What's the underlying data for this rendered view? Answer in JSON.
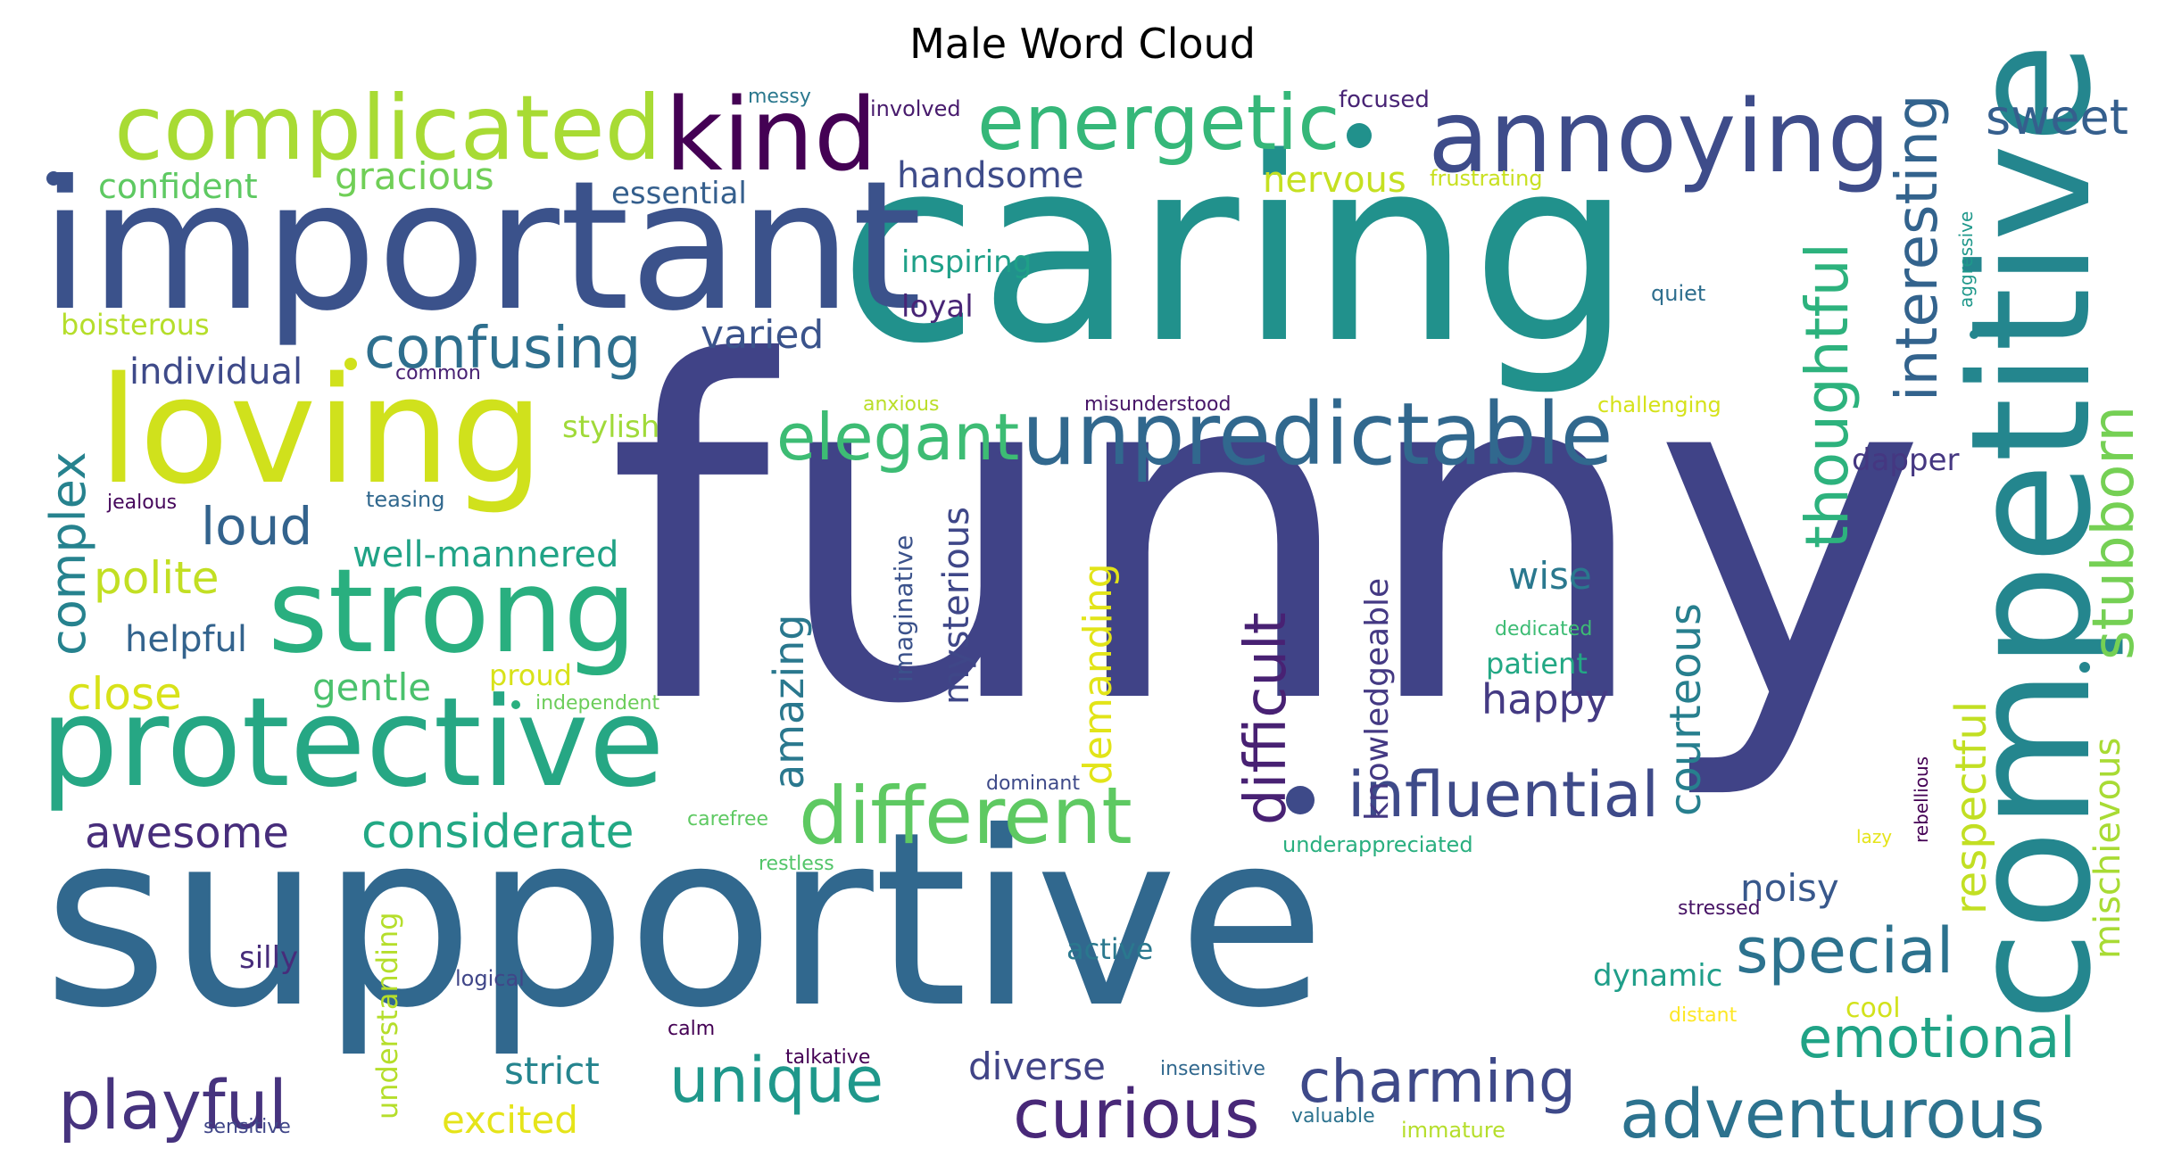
{
  "title": "Male Word Cloud",
  "words": [
    {
      "text": "funny",
      "color": "#404387"
    },
    {
      "text": "supportive",
      "color": "#31688e"
    },
    {
      "text": "caring",
      "color": "#21918c"
    },
    {
      "text": "important",
      "color": "#3b528b"
    },
    {
      "text": "competitive",
      "color": "#24868e"
    },
    {
      "text": "loving",
      "color": "#d0e11c"
    },
    {
      "text": "protective",
      "color": "#26a784"
    },
    {
      "text": "strong",
      "color": "#29af7f"
    },
    {
      "text": "complicated",
      "color": "#a8db34"
    },
    {
      "text": "annoying",
      "color": "#3e4c8a"
    },
    {
      "text": "kind",
      "color": "#440154"
    },
    {
      "text": "energetic",
      "color": "#35b779"
    },
    {
      "text": "unpredictable",
      "color": "#31688e"
    },
    {
      "text": "different",
      "color": "#5ec962"
    },
    {
      "text": "elegant",
      "color": "#3dbc74"
    },
    {
      "text": "confusing",
      "color": "#2e6f8e"
    },
    {
      "text": "influential",
      "color": "#3e4a89"
    },
    {
      "text": "interesting",
      "color": "#33638d"
    },
    {
      "text": "thoughtful",
      "color": "#2db27d"
    },
    {
      "text": "stubborn",
      "color": "#75d054"
    },
    {
      "text": "special",
      "color": "#2c728e"
    },
    {
      "text": "emotional",
      "color": "#20a386"
    },
    {
      "text": "adventurous",
      "color": "#2c728e"
    },
    {
      "text": "curious",
      "color": "#482878"
    },
    {
      "text": "charming",
      "color": "#3e4989"
    },
    {
      "text": "playful",
      "color": "#46337e"
    },
    {
      "text": "unique",
      "color": "#1f988b"
    },
    {
      "text": "difficult",
      "color": "#482173"
    },
    {
      "text": "considerate",
      "color": "#22a884"
    },
    {
      "text": "courteous",
      "color": "#277f8e"
    },
    {
      "text": "respectful",
      "color": "#c2df23"
    },
    {
      "text": "complex",
      "color": "#26828e"
    },
    {
      "text": "awesome",
      "color": "#472d7b"
    },
    {
      "text": "sweet",
      "color": "#355f8d"
    },
    {
      "text": "loud",
      "color": "#33638d"
    },
    {
      "text": "polite",
      "color": "#c2df23"
    },
    {
      "text": "close",
      "color": "#d8e219"
    },
    {
      "text": "amazing",
      "color": "#2a788e"
    },
    {
      "text": "mysterious",
      "color": "#3f4788"
    },
    {
      "text": "demanding",
      "color": "#e2e418"
    },
    {
      "text": "knowledgeable",
      "color": "#443983"
    },
    {
      "text": "mischievous",
      "color": "#a8db34"
    },
    {
      "text": "handsome",
      "color": "#3e4c8a"
    },
    {
      "text": "nervous",
      "color": "#c5e021"
    },
    {
      "text": "confident",
      "color": "#5ec962"
    },
    {
      "text": "gracious",
      "color": "#70cf57"
    },
    {
      "text": "individual",
      "color": "#3e4a89"
    },
    {
      "text": "varied",
      "color": "#3a538b"
    },
    {
      "text": "well-mannered",
      "color": "#20a386"
    },
    {
      "text": "helpful",
      "color": "#33638d"
    },
    {
      "text": "gentle",
      "color": "#4ac16d"
    },
    {
      "text": "wise",
      "color": "#2a788e"
    },
    {
      "text": "happy",
      "color": "#443a83"
    },
    {
      "text": "noisy",
      "color": "#38588c"
    },
    {
      "text": "excited",
      "color": "#e5e419"
    },
    {
      "text": "strict",
      "color": "#25848e"
    },
    {
      "text": "diverse",
      "color": "#414487"
    },
    {
      "text": "understanding",
      "color": "#b5de2b"
    },
    {
      "text": "silly",
      "color": "#472c7a"
    },
    {
      "text": "dynamic",
      "color": "#1f9e89"
    },
    {
      "text": "active",
      "color": "#2a788e"
    },
    {
      "text": "proud",
      "color": "#d8e219"
    },
    {
      "text": "patient",
      "color": "#22a884"
    },
    {
      "text": "essential",
      "color": "#355f8d"
    },
    {
      "text": "loyal",
      "color": "#482576"
    },
    {
      "text": "inspiring",
      "color": "#1fa088"
    },
    {
      "text": "imaginative",
      "color": "#3b528b"
    },
    {
      "text": "dapper",
      "color": "#453781"
    },
    {
      "text": "boisterous",
      "color": "#b5de2b"
    },
    {
      "text": "stylish",
      "color": "#a0da39"
    },
    {
      "text": "cool",
      "color": "#d2e21b"
    },
    {
      "text": "focused",
      "color": "#482475"
    },
    {
      "text": "messy",
      "color": "#2a788e"
    },
    {
      "text": "involved",
      "color": "#481b6d"
    },
    {
      "text": "frustrating",
      "color": "#c8e020"
    },
    {
      "text": "aggressive",
      "color": "#1f988b"
    },
    {
      "text": "quiet",
      "color": "#2e6e8e"
    },
    {
      "text": "common",
      "color": "#482173"
    },
    {
      "text": "anxious",
      "color": "#bade28"
    },
    {
      "text": "misunderstood",
      "color": "#481668"
    },
    {
      "text": "challenging",
      "color": "#d5e21a"
    },
    {
      "text": "jealous",
      "color": "#46085c"
    },
    {
      "text": "teasing",
      "color": "#31688e"
    },
    {
      "text": "dedicated",
      "color": "#3dbc74"
    },
    {
      "text": "independent",
      "color": "#6ccd5a"
    },
    {
      "text": "rebellious",
      "color": "#440154"
    },
    {
      "text": "lazy",
      "color": "#e5e419"
    },
    {
      "text": "carefree",
      "color": "#5ec962"
    },
    {
      "text": "dominant",
      "color": "#3e4a89"
    },
    {
      "text": "underappreciated",
      "color": "#29af7f"
    },
    {
      "text": "restless",
      "color": "#52c569"
    },
    {
      "text": "stressed",
      "color": "#471365"
    },
    {
      "text": "logical",
      "color": "#404688"
    },
    {
      "text": "calm",
      "color": "#440154"
    },
    {
      "text": "distant",
      "color": "#fde725"
    },
    {
      "text": "talkative",
      "color": "#440154"
    },
    {
      "text": "insensitive",
      "color": "#31688e"
    },
    {
      "text": "sensitive",
      "color": "#404688"
    },
    {
      "text": "valuable",
      "color": "#2c728e"
    },
    {
      "text": "immature",
      "color": "#b5de2b"
    }
  ]
}
